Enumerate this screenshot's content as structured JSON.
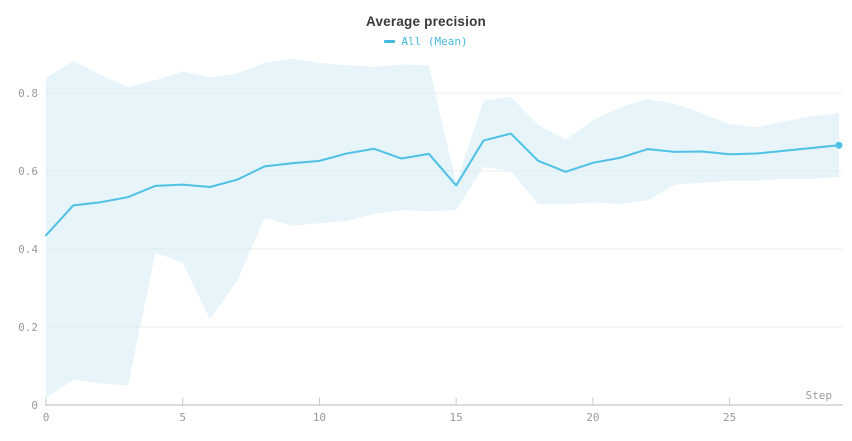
{
  "chart": {
    "title": "Average precision",
    "legend": {
      "label": "All (Mean)"
    },
    "x_axis": {
      "label": "Step",
      "ticks": [
        "0",
        "5",
        "10",
        "15",
        "20",
        "25"
      ],
      "tick_values": [
        0,
        5,
        10,
        15,
        20,
        25
      ]
    },
    "y_axis": {
      "ticks": [
        "0",
        "0.2",
        "0.4",
        "0.6",
        "0.8"
      ],
      "tick_values": [
        0,
        0.2,
        0.4,
        0.6,
        0.8
      ]
    },
    "colors": {
      "line": "#4ec1e4",
      "legend_text": "#45b9de",
      "band": "#d9edf5",
      "grid": "#ececec",
      "axis": "#dddddd",
      "tick": "#c9c9c9",
      "tick_label": "#999999",
      "title": "#3a3a3a"
    }
  },
  "chart_data": {
    "type": "line",
    "title": "Average precision",
    "xlabel": "Step",
    "ylabel": "",
    "xlim": [
      0,
      29
    ],
    "ylim": [
      0,
      0.9
    ],
    "grid": true,
    "legend_position": "top",
    "series": [
      {
        "name": "All (Mean)",
        "x": [
          0,
          1,
          2,
          3,
          4,
          5,
          6,
          7,
          8,
          9,
          10,
          11,
          12,
          13,
          14,
          15,
          16,
          17,
          18,
          19,
          20,
          21,
          22,
          23,
          24,
          25,
          26,
          27,
          28,
          29
        ],
        "values": [
          0.435,
          0.512,
          0.52,
          0.533,
          0.562,
          0.565,
          0.559,
          0.578,
          0.612,
          0.62,
          0.626,
          0.645,
          0.657,
          0.632,
          0.644,
          0.563,
          0.678,
          0.696,
          0.626,
          0.598,
          0.621,
          0.634,
          0.656,
          0.649,
          0.65,
          0.643,
          0.645,
          0.652,
          0.659,
          0.666
        ],
        "band_upper": [
          0.838,
          0.882,
          0.846,
          0.815,
          0.833,
          0.855,
          0.84,
          0.85,
          0.878,
          0.888,
          0.877,
          0.871,
          0.867,
          0.873,
          0.871,
          0.568,
          0.78,
          0.79,
          0.718,
          0.68,
          0.73,
          0.763,
          0.785,
          0.772,
          0.748,
          0.72,
          0.712,
          0.727,
          0.74,
          0.748
        ],
        "band_lower": [
          0.018,
          0.065,
          0.055,
          0.05,
          0.39,
          0.365,
          0.22,
          0.32,
          0.48,
          0.46,
          0.466,
          0.472,
          0.49,
          0.5,
          0.497,
          0.5,
          0.61,
          0.6,
          0.515,
          0.515,
          0.52,
          0.515,
          0.525,
          0.565,
          0.57,
          0.575,
          0.575,
          0.58,
          0.58,
          0.585
        ],
        "end_marker": true
      }
    ]
  }
}
